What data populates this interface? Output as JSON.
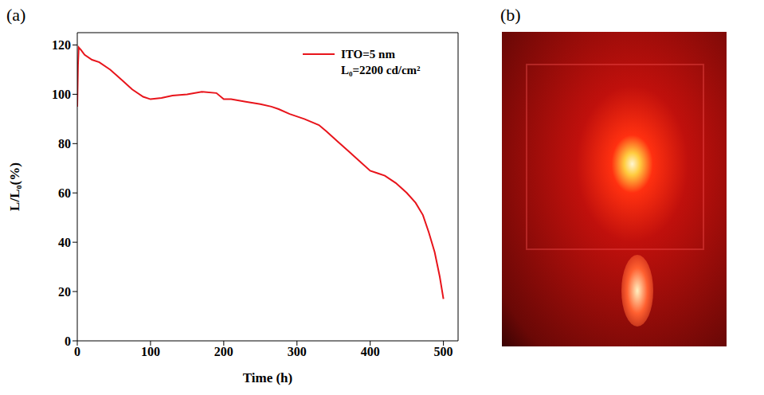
{
  "panel_labels": [
    "(a)",
    "(b)"
  ],
  "chart_data": {
    "type": "line",
    "x_label": "Time (h)",
    "y_label": "L/L₀(%)",
    "annotation": "L₀=2200 cd/cm²",
    "x": [
      0,
      1,
      2,
      5,
      10,
      20,
      30,
      45,
      60,
      75,
      90,
      100,
      115,
      130,
      150,
      170,
      190,
      200,
      210,
      230,
      250,
      265,
      275,
      290,
      310,
      330,
      340,
      355,
      370,
      385,
      400,
      410,
      420,
      435,
      450,
      462,
      472,
      480,
      488,
      495,
      500
    ],
    "series": [
      {
        "name": "ITO=5 nm",
        "color": "#e8141b",
        "values": [
          95,
          112,
          119,
          118,
          116,
          114,
          113,
          110,
          106,
          102,
          99,
          98,
          98.5,
          99.5,
          100,
          101,
          100.5,
          98,
          98,
          97,
          96,
          95,
          94,
          92,
          90,
          87.5,
          85,
          81,
          77,
          73,
          69,
          68,
          67,
          64,
          60,
          56,
          51,
          44,
          36,
          26,
          17
        ]
      }
    ],
    "xlim": [
      0,
      520
    ],
    "xticks": [
      0,
      100,
      200,
      300,
      400,
      500
    ],
    "ylim": [
      0,
      125
    ],
    "yticks": [
      0,
      20,
      40,
      60,
      80,
      100,
      120
    ],
    "legend": "upper right",
    "grid": false
  }
}
